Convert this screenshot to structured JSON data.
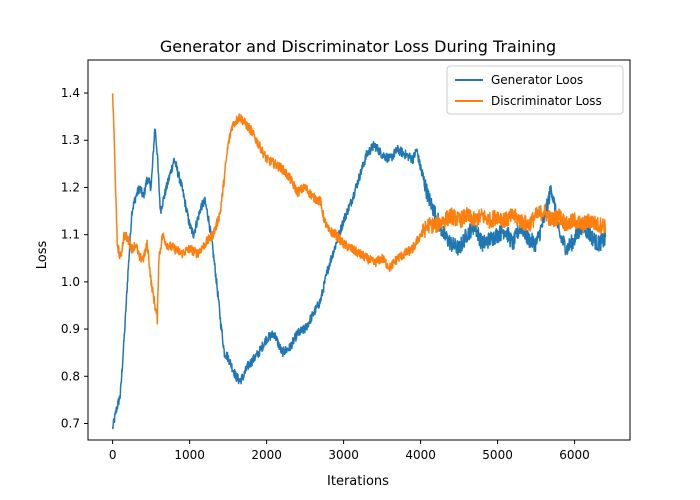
{
  "chart_data": {
    "type": "line",
    "title": "Generator and Discriminator Loss During Training",
    "xlabel": "Iterations",
    "ylabel": "Loss",
    "xlim": [
      -320,
      6720
    ],
    "ylim": [
      0.665,
      1.47
    ],
    "xticks": [
      0,
      1000,
      2000,
      3000,
      4000,
      5000,
      6000
    ],
    "xtick_labels": [
      "0",
      "1000",
      "2000",
      "3000",
      "4000",
      "5000",
      "6000"
    ],
    "yticks": [
      0.7,
      0.8,
      0.9,
      1.0,
      1.1,
      1.2,
      1.3,
      1.4
    ],
    "ytick_labels": [
      "0.7",
      "0.8",
      "0.9",
      "1.0",
      "1.1",
      "1.2",
      "1.3",
      "1.4"
    ],
    "grid": false,
    "legend_position": "upper right",
    "series": [
      {
        "name": "Generator Loos",
        "color": "#1f77b4",
        "x": [
          0,
          50,
          100,
          150,
          200,
          250,
          300,
          350,
          400,
          450,
          500,
          550,
          580,
          620,
          700,
          800,
          900,
          1000,
          1050,
          1100,
          1150,
          1200,
          1250,
          1300,
          1350,
          1400,
          1450,
          1500,
          1550,
          1600,
          1650,
          1700,
          1750,
          1800,
          1900,
          2000,
          2100,
          2200,
          2300,
          2400,
          2500,
          2600,
          2700,
          2800,
          2900,
          3000,
          3100,
          3200,
          3300,
          3400,
          3500,
          3600,
          3700,
          3800,
          3900,
          3950,
          4000,
          4100,
          4200,
          4300,
          4400,
          4500,
          4600,
          4700,
          4800,
          4900,
          5000,
          5100,
          5200,
          5300,
          5400,
          5500,
          5600,
          5700,
          5800,
          5900,
          6000,
          6100,
          6200,
          6300,
          6400
        ],
        "values": [
          0.69,
          0.73,
          0.76,
          0.88,
          1.02,
          1.15,
          1.18,
          1.2,
          1.18,
          1.22,
          1.2,
          1.33,
          1.27,
          1.15,
          1.2,
          1.26,
          1.2,
          1.12,
          1.1,
          1.13,
          1.16,
          1.17,
          1.13,
          1.07,
          1.0,
          0.92,
          0.85,
          0.84,
          0.82,
          0.8,
          0.79,
          0.8,
          0.82,
          0.83,
          0.85,
          0.88,
          0.89,
          0.85,
          0.86,
          0.89,
          0.9,
          0.93,
          0.96,
          1.03,
          1.08,
          1.13,
          1.17,
          1.22,
          1.27,
          1.29,
          1.27,
          1.26,
          1.28,
          1.27,
          1.26,
          1.28,
          1.24,
          1.18,
          1.14,
          1.1,
          1.08,
          1.07,
          1.1,
          1.12,
          1.08,
          1.09,
          1.1,
          1.11,
          1.08,
          1.12,
          1.09,
          1.08,
          1.13,
          1.2,
          1.1,
          1.07,
          1.09,
          1.12,
          1.1,
          1.08,
          1.09
        ]
      },
      {
        "name": "Discriminator Loss",
        "color": "#ff7f0e",
        "x": [
          0,
          20,
          60,
          100,
          150,
          200,
          250,
          300,
          350,
          400,
          450,
          500,
          550,
          580,
          600,
          650,
          700,
          800,
          900,
          1000,
          1100,
          1200,
          1300,
          1350,
          1400,
          1450,
          1500,
          1550,
          1600,
          1650,
          1700,
          1750,
          1800,
          1900,
          2000,
          2100,
          2200,
          2300,
          2400,
          2500,
          2600,
          2700,
          2750,
          2800,
          2900,
          3000,
          3100,
          3200,
          3300,
          3400,
          3500,
          3600,
          3700,
          3800,
          3900,
          4000,
          4100,
          4200,
          4300,
          4400,
          4500,
          4600,
          4700,
          4800,
          4900,
          5000,
          5100,
          5200,
          5300,
          5400,
          5500,
          5600,
          5700,
          5800,
          5900,
          6000,
          6100,
          6200,
          6300,
          6400
        ],
        "values": [
          1.4,
          1.3,
          1.08,
          1.05,
          1.1,
          1.09,
          1.07,
          1.08,
          1.05,
          1.05,
          1.08,
          1.0,
          0.95,
          0.92,
          1.05,
          1.1,
          1.08,
          1.07,
          1.06,
          1.07,
          1.06,
          1.08,
          1.1,
          1.12,
          1.15,
          1.22,
          1.29,
          1.33,
          1.34,
          1.35,
          1.34,
          1.33,
          1.32,
          1.29,
          1.26,
          1.25,
          1.24,
          1.22,
          1.19,
          1.2,
          1.18,
          1.17,
          1.13,
          1.11,
          1.1,
          1.08,
          1.07,
          1.06,
          1.05,
          1.04,
          1.05,
          1.03,
          1.05,
          1.06,
          1.07,
          1.1,
          1.12,
          1.12,
          1.13,
          1.14,
          1.13,
          1.14,
          1.13,
          1.14,
          1.13,
          1.14,
          1.13,
          1.14,
          1.13,
          1.12,
          1.14,
          1.15,
          1.13,
          1.14,
          1.12,
          1.13,
          1.12,
          1.13,
          1.12,
          1.12
        ]
      }
    ]
  }
}
